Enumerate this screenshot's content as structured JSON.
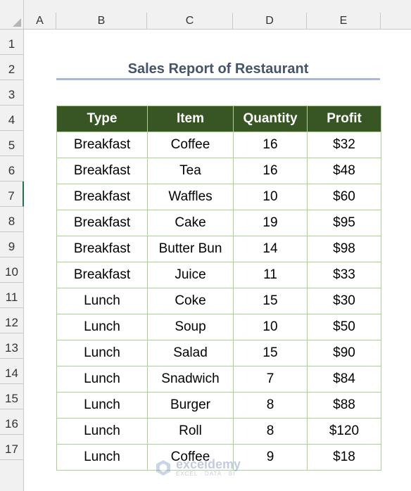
{
  "columns": [
    "A",
    "B",
    "C",
    "D",
    "E"
  ],
  "rows": [
    "1",
    "2",
    "3",
    "4",
    "5",
    "6",
    "7",
    "8",
    "9",
    "10",
    "11",
    "12",
    "13",
    "14",
    "15",
    "16",
    "17"
  ],
  "selected_row": "7",
  "title": "Sales Report of Restaurant",
  "table": {
    "headers": [
      "Type",
      "Item",
      "Quantity",
      "Profit"
    ],
    "rows": [
      [
        "Breakfast",
        "Coffee",
        "16",
        "$32"
      ],
      [
        "Breakfast",
        "Tea",
        "16",
        "$48"
      ],
      [
        "Breakfast",
        "Waffles",
        "10",
        "$60"
      ],
      [
        "Breakfast",
        "Cake",
        "19",
        "$95"
      ],
      [
        "Breakfast",
        "Butter Bun",
        "14",
        "$98"
      ],
      [
        "Breakfast",
        "Juice",
        "11",
        "$33"
      ],
      [
        "Lunch",
        "Coke",
        "15",
        "$30"
      ],
      [
        "Lunch",
        "Soup",
        "10",
        "$50"
      ],
      [
        "Lunch",
        "Salad",
        "15",
        "$90"
      ],
      [
        "Lunch",
        "Snadwich",
        "7",
        "$84"
      ],
      [
        "Lunch",
        "Burger",
        "8",
        "$88"
      ],
      [
        "Lunch",
        "Roll",
        "8",
        "$120"
      ],
      [
        "Lunch",
        "Coffee",
        "9",
        "$18"
      ]
    ]
  },
  "watermark": {
    "name": "exceldemy",
    "tagline": "EXCEL · DATA · BI"
  },
  "colors": {
    "header_fill": "#375623",
    "border": "#a9d08e",
    "title": "#44546a",
    "underline": "#a9b8db",
    "selection": "#217346"
  }
}
